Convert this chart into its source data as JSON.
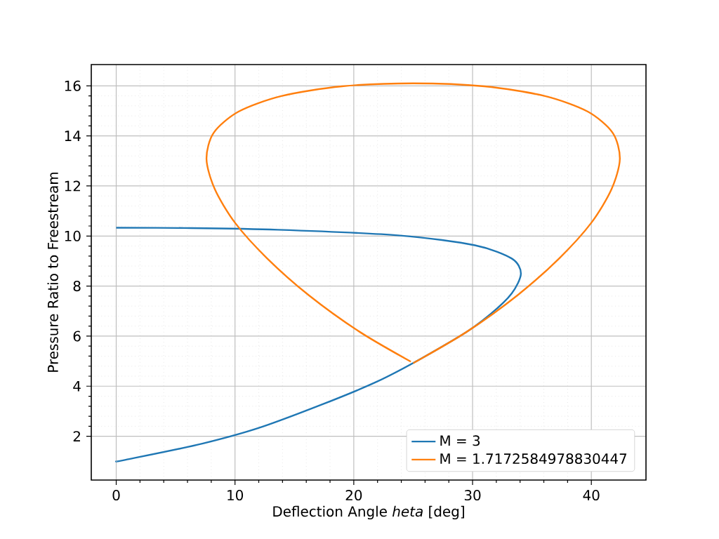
{
  "chart_data": {
    "type": "line",
    "xlabel": "Deflection Angle *heta* [deg]",
    "ylabel": "Pressure Ratio to Freestream",
    "xlim": [
      -2.1,
      44.6
    ],
    "ylim": [
      0.25,
      16.85
    ],
    "xticks": [
      0,
      10,
      20,
      30,
      40
    ],
    "yticks": [
      2,
      4,
      6,
      8,
      10,
      12,
      14,
      16
    ],
    "grid": true,
    "legend": "bottom right",
    "series": [
      {
        "name": "M = 3",
        "color": "#1f77b4",
        "x": [
          0,
          0.8,
          7.3,
          12.8,
          21.9,
          28.9,
          31.5,
          33.3,
          34.07,
          33.3,
          30.2,
          23.9,
          13.6,
          5.7,
          0
        ],
        "values": [
          1,
          1.06,
          1.71,
          2.46,
          4.17,
          5.99,
          6.88,
          7.71,
          8.5,
          9.1,
          9.63,
          10.02,
          10.25,
          10.32,
          10.33
        ]
      },
      {
        "name": "M = 1.7172584978830447",
        "color": "#ff7f0e",
        "x": [
          25,
          29.5,
          33.8,
          37.3,
          40.0,
          41.7,
          42.4,
          41.8,
          39.7,
          36.1,
          31.0,
          25,
          19.0,
          13.9,
          10.3,
          8.2,
          7.6,
          8.3,
          10.0,
          12.7,
          16.2,
          20.5,
          24.8
        ],
        "values": [
          4.92,
          6.17,
          7.64,
          9.11,
          10.53,
          11.87,
          13.08,
          14.12,
          14.97,
          15.59,
          15.98,
          16.1,
          15.98,
          15.59,
          14.97,
          14.12,
          13.08,
          11.87,
          10.53,
          9.11,
          7.64,
          6.17,
          4.98
        ]
      }
    ]
  }
}
